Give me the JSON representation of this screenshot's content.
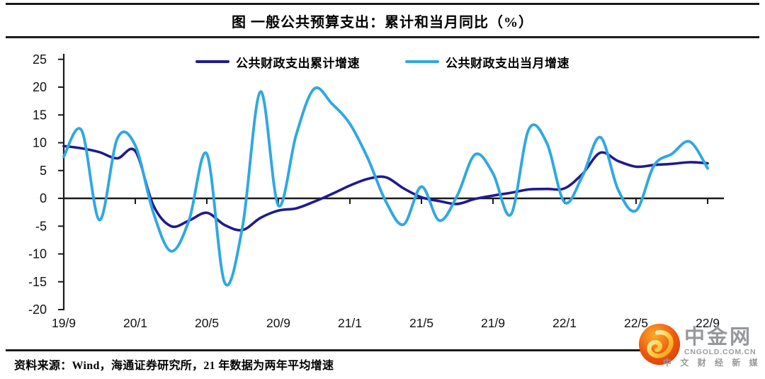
{
  "source_note": "资料来源：Wind，海通证券研究所，21 年数据为两年平均增速",
  "logo": {
    "name": "中金网",
    "domain": "CNGOLD.COM.CN",
    "tagline": "中 文 财 经 新 媒 体"
  },
  "chart_data": {
    "type": "line",
    "title": "图  一般公共预算支出：累计和当月同比（%）",
    "unit": "%",
    "grid": false,
    "smoothing": "spline",
    "legend_position": "top",
    "axis_color": "#1a1a1a",
    "ylim": [
      -20,
      25
    ],
    "y_ticks": [
      25,
      20,
      15,
      10,
      5,
      0,
      -5,
      -10,
      -15,
      -20
    ],
    "x_tick_labels": [
      "19/9",
      "20/1",
      "20/5",
      "20/9",
      "21/1",
      "21/5",
      "21/9",
      "22/1",
      "22/5",
      "22/9"
    ],
    "categories": [
      "19/9",
      "19/10",
      "19/11",
      "19/12",
      "20/1",
      "20/2",
      "20/3",
      "20/4",
      "20/5",
      "20/6",
      "20/7",
      "20/8",
      "20/9",
      "20/10",
      "20/11",
      "20/12",
      "21/1",
      "21/2",
      "21/3",
      "21/4",
      "21/5",
      "21/6",
      "21/7",
      "21/8",
      "21/9",
      "21/10",
      "21/11",
      "21/12",
      "22/1",
      "22/2",
      "22/3",
      "22/4",
      "22/5",
      "22/6",
      "22/7",
      "22/8",
      "22/9"
    ],
    "series": [
      {
        "name": "公共财政支出累计增速",
        "color": "#1f1a8f",
        "values": [
          9.4,
          9.0,
          8.3,
          7.2,
          8.5,
          -1.2,
          -5.0,
          -4.0,
          -2.6,
          -4.8,
          -5.7,
          -3.5,
          -2.2,
          -1.8,
          -0.6,
          0.8,
          2.3,
          3.5,
          3.8,
          1.8,
          0.2,
          -0.5,
          -1.0,
          -0.1,
          0.5,
          1.0,
          1.6,
          1.7,
          1.8,
          4.4,
          8.2,
          6.7,
          5.7,
          6.0,
          6.2,
          6.5,
          6.3
        ]
      },
      {
        "name": "公共财政支出当月增速",
        "color": "#2fa8e2",
        "values": [
          7.5,
          12.2,
          -3.9,
          10.8,
          9.5,
          -2.5,
          -9.5,
          -4.0,
          8.0,
          -15.2,
          -5.0,
          19.2,
          -1.3,
          11.5,
          19.7,
          17.0,
          13.4,
          7.2,
          -0.5,
          -4.7,
          2.1,
          -4.0,
          0.5,
          7.9,
          4.5,
          -2.9,
          12.4,
          10.0,
          -0.7,
          4.0,
          11.0,
          1.5,
          -2.2,
          5.9,
          8.0,
          10.2,
          5.4
        ]
      }
    ]
  }
}
